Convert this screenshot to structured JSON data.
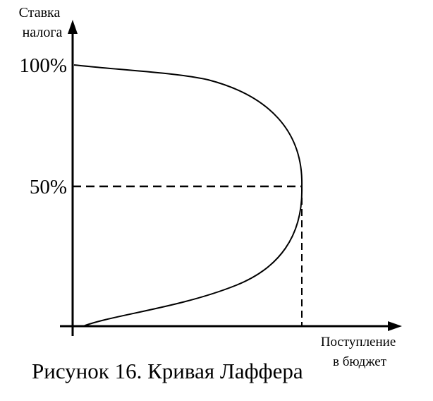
{
  "y_axis_label": [
    "Ставка",
    "налога"
  ],
  "x_axis_label": [
    "Поступление",
    "в бюджет"
  ],
  "y_labels": [
    "100%",
    "50%"
  ],
  "caption": "Рисунок 16. Кривая Лаффера"
}
